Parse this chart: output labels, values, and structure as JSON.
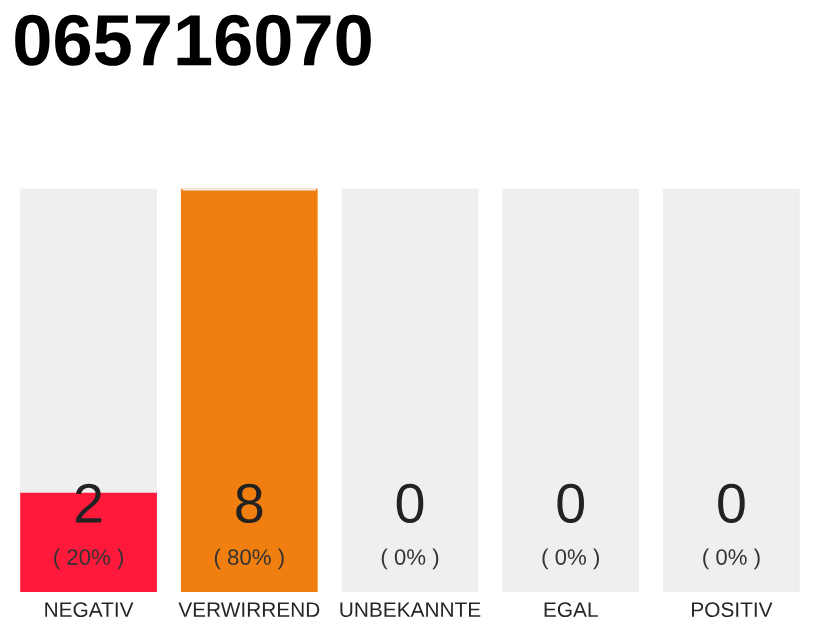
{
  "chart_data": {
    "type": "bar",
    "title": "065716070",
    "categories": [
      "NEGATIV",
      "VERWIRREND",
      "UNBEKANNTE",
      "EGAL",
      "POSITIV"
    ],
    "stacked": true,
    "ylim": [
      0,
      8
    ],
    "tick_labels": "x",
    "grid": false,
    "legend": false,
    "series": [
      {
        "colors": [
          "#ff1a3c",
          "#f07f0f",
          "#6a9ae0",
          "#7ac45a",
          "#22a04a"
        ],
        "values": [
          2,
          8,
          0,
          0,
          0
        ],
        "value_labels": [
          "2\n( 20% )",
          "8\n( 80% )",
          "0\n( 0% )",
          "0\n( 0% )",
          "0\n( 0% )"
        ]
      },
      {
        "color": "#efefef",
        "values": [
          6,
          0,
          8,
          8,
          8
        ]
      }
    ]
  }
}
